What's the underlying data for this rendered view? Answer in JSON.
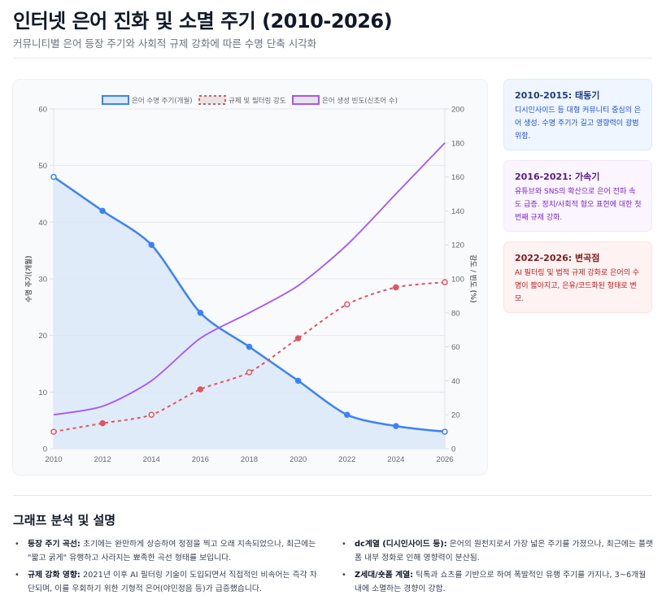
{
  "header": {
    "title": "인터넷 은어 진화 및 소멸 주기 (2010-2026)",
    "subtitle": "커뮤니티별 은어 등장 주기와 사회적 규제 강화에 따른 수명 단축 시각화"
  },
  "chart_data": {
    "type": "line",
    "title": "",
    "x": [
      "2010",
      "2012",
      "2014",
      "2016",
      "2018",
      "2020",
      "2022",
      "2024",
      "2026"
    ],
    "xlabel": "",
    "ylabel": "수명 주기(개월)",
    "y2label": "강도 / 빈도 (%)",
    "ylim": [
      0,
      60
    ],
    "y2lim": [
      0,
      200
    ],
    "yticks": [
      "0",
      "10",
      "20",
      "30",
      "40",
      "50",
      "60"
    ],
    "y2ticks": [
      "0",
      "20",
      "40",
      "60",
      "80",
      "100",
      "120",
      "140",
      "160",
      "180",
      "200"
    ],
    "grid": true,
    "legend_position": "top",
    "series": [
      {
        "name": "은어 수명 주기(개월)",
        "axis": "left",
        "color": "#3b82f6",
        "fill": "#dbe7f8",
        "style": "solid",
        "markers": true,
        "filled": true,
        "values": [
          48,
          42,
          36,
          24,
          18,
          12,
          6,
          4,
          3
        ]
      },
      {
        "name": "규제 및 필터링 강도",
        "axis": "right",
        "color": "#e05563",
        "style": "dashed",
        "markers": true,
        "filled": false,
        "values": [
          10,
          15,
          20,
          35,
          45,
          65,
          85,
          95,
          98
        ]
      },
      {
        "name": "은어 생성 빈도(신조어 수)",
        "axis": "right",
        "color": "#a855f7",
        "style": "solid",
        "markers": false,
        "filled": false,
        "values": [
          20,
          25,
          40,
          65,
          80,
          96,
          120,
          150,
          180
        ]
      }
    ]
  },
  "cards": [
    {
      "title": "2010-2015: 태동기",
      "text": "디시인사이드 등 대형 커뮤니티 중심의 은어 생성. 수명 주기가 길고 영향력이 광범위함."
    },
    {
      "title": "2016-2021: 가속기",
      "text": "유튜브와 SNS의 확산으로 은어 전파 속도 급증. 정치/사회적 혐오 표현에 대한 첫 번째 규제 강화."
    },
    {
      "title": "2022-2026: 변곡점",
      "text": "AI 필터링 및 법적 규제 강화로 은어의 수명이 짧아지고, 은유/코드화된 형태로 변모."
    }
  ],
  "analysis": {
    "title": "그래프 분석 및 설명",
    "bullets": [
      {
        "label": "등장 주기 곡선:",
        "text": " 초기에는 완만하게 상승하여 정점을 찍고 오래 지속되었으나, 최근에는 \"짧고 굵게\" 유행하고 사라지는 뾰족한 곡선 형태를 보입니다."
      },
      {
        "label": "dc계열 (디시인사이드 등):",
        "text": " 은어의 원천지로서 가장 넓은 주기를 가졌으나, 최근에는 플랫폼 내부 정화로 인해 영향력이 분산됨."
      },
      {
        "label": "규제 강화 영향:",
        "text": " 2021년 이후 AI 필터링 기술이 도입되면서 직접적인 비속어는 즉각 차단되며, 이를 우회하기 위한 기형적 은어(야민정음 등)가 급증했습니다."
      },
      {
        "label": "Z세대/숏폼 계열:",
        "text": " 틱톡과 쇼츠를 기반으로 하여 폭발적인 유행 주기를 가지나, 3~6개월 내에 소멸하는 경향이 강함."
      }
    ]
  }
}
